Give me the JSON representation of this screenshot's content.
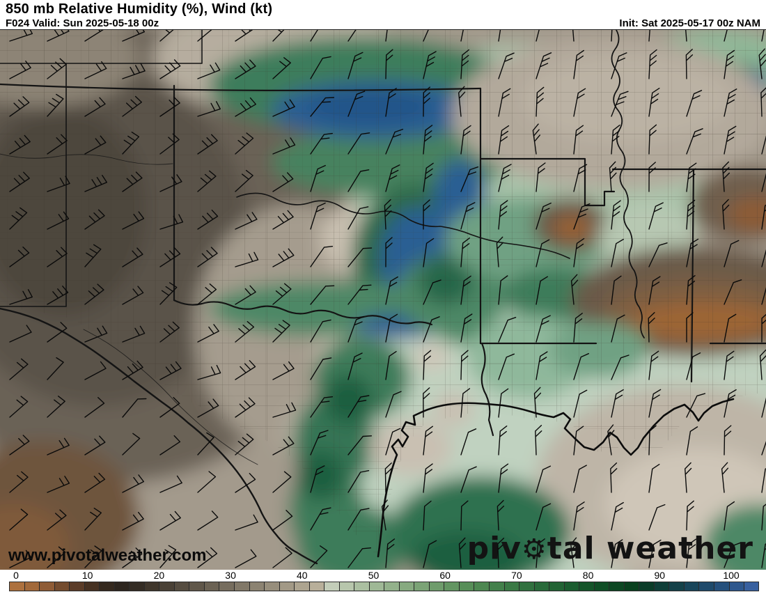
{
  "header": {
    "title": "850 mb Relative Humidity (%), Wind (kt)",
    "forecast": "F024 Valid: Sun 2025-05-18 00z",
    "init": "Init: Sat 2025-05-17 00z NAM"
  },
  "watermark": {
    "url_text": "www.pivotalweather.com",
    "logo_pre": "piv",
    "logo_gear": "⚙",
    "logo_post": "tal weather"
  },
  "colorbar": {
    "units": "%",
    "tick_labels": [
      "0",
      "10",
      "20",
      "30",
      "40",
      "50",
      "60",
      "70",
      "80",
      "90",
      "100"
    ],
    "cell_colors": [
      "#ad713e",
      "#a2693a",
      "#8f5c36",
      "#744c2f",
      "#5b3c28",
      "#463122",
      "#35291e",
      "#2d251e",
      "#342c24",
      "#3f362c",
      "#4a4136",
      "#554c40",
      "#60574a",
      "#6b6254",
      "#766d5e",
      "#817868",
      "#8c8372",
      "#978e7c",
      "#a29986",
      "#ada490",
      "#b8af9a",
      "#c3cdb9",
      "#b7c6ac",
      "#abbfa1",
      "#9fb896",
      "#93b18b",
      "#87aa80",
      "#7ba376",
      "#6f9c6c",
      "#639562",
      "#578e58",
      "#4d8751",
      "#43804b",
      "#3a7945",
      "#31713f",
      "#296a3a",
      "#226334",
      "#1b5c2f",
      "#15552a",
      "#104e26",
      "#0c4722",
      "#09401e",
      "#0a3c28",
      "#0f3e38",
      "#144149",
      "#19455a",
      "#1f4a6b",
      "#26507c",
      "#2e578d",
      "#38609f"
    ]
  },
  "map_palette": {
    "dry_brown_dark": "#4e463c",
    "dry_brown": "#6b6257",
    "dry_orange": "#9c6535",
    "neutral_tan": "#b2a99b",
    "moist_pale_green": "#c0d2c0",
    "moist_green": "#3c7c5a",
    "moist_green_dark": "#1c5f41",
    "saturated_blue": "#2b5f93",
    "border_black": "#141414"
  }
}
